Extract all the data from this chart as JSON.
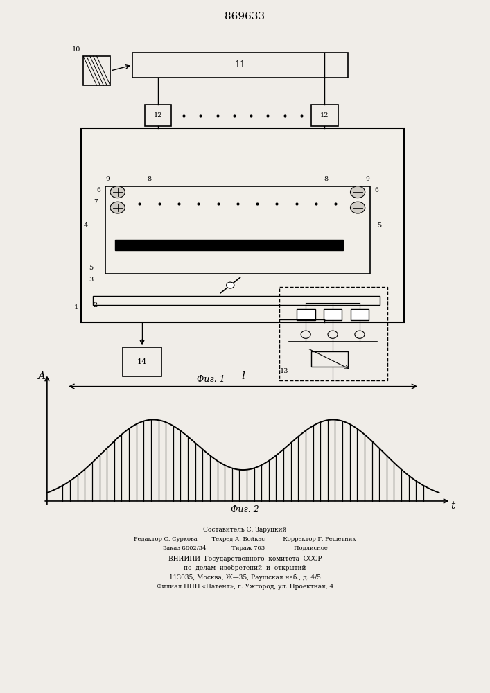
{
  "title": "869633",
  "fig1_caption": "Фиг. 1",
  "fig2_caption": "Фиг. 2",
  "fig2_xlabel": "t",
  "fig2_ylabel": "A",
  "fig2_span_label": "l",
  "footer_lines": [
    "Составитель С. Заруцкий",
    "Редактор С. Суркова        Техред А. Бойкас          Корректор Г. Решетник",
    "Заказ 8802/34              Тираж 703                Подлисное",
    "ВНИИПИ  Государственного  комитета  СССР",
    "по  делам  изобретений  и  открытий",
    "113035, Москва, Ж—35, Раушская наб., д. 4/5",
    "Филиал ППП «Патент», г. Ужгород, ул. Проектная, 4"
  ],
  "bg_color": "#f0ede8",
  "line_color": "#000000",
  "text_color": "#000000"
}
